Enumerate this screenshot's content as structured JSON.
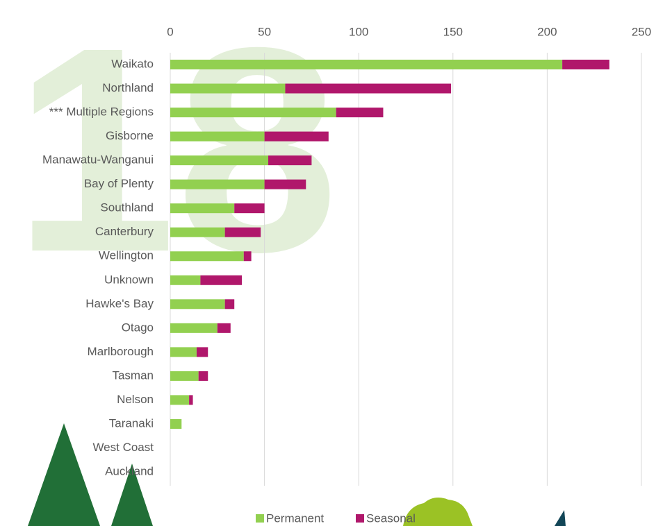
{
  "chart_data": {
    "type": "bar",
    "orientation": "horizontal",
    "stacked": true,
    "categories": [
      "Waikato",
      "Northland",
      "*** Multiple Regions",
      "Gisborne",
      "Manawatu-Wanganui",
      "Bay of Plenty",
      "Southland",
      "Canterbury",
      "Wellington",
      "Unknown",
      "Hawke's Bay",
      "Otago",
      "Marlborough",
      "Tasman",
      "Nelson",
      "Taranaki",
      "West Coast",
      "Auckland"
    ],
    "series": [
      {
        "name": "Permanent",
        "color": "#92d050",
        "values": [
          208,
          61,
          88,
          50,
          52,
          50,
          34,
          29,
          39,
          16,
          29,
          25,
          14,
          15,
          10,
          6,
          0,
          0
        ]
      },
      {
        "name": "Seasonal",
        "color": "#b0176b",
        "values": [
          25,
          88,
          25,
          34,
          23,
          22,
          16,
          19,
          4,
          22,
          5,
          7,
          6,
          5,
          2,
          0,
          0,
          0
        ]
      }
    ],
    "xlim": [
      0,
      250
    ],
    "xticks": [
      0,
      50,
      100,
      150,
      200,
      250
    ],
    "grid": true,
    "legend": "bottom"
  }
}
